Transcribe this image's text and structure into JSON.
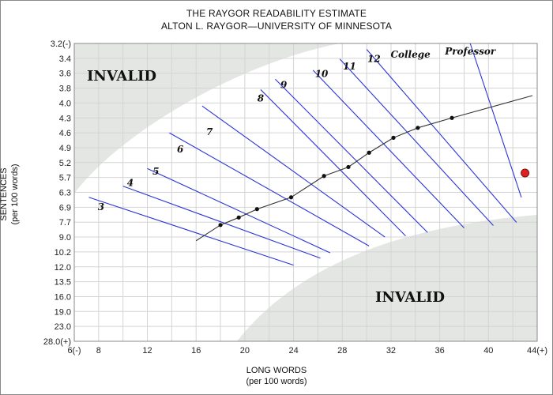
{
  "header": {
    "title": "THE RAYGOR READABILITY ESTIMATE",
    "subtitle": "ALTON L. RAYGOR—UNIVERSITY OF MINNESOTA"
  },
  "chart_data": {
    "type": "scatter",
    "title": "THE RAYGOR READABILITY ESTIMATE",
    "subtitle": "ALTON L. RAYGOR—UNIVERSITY OF MINNESOTA",
    "xlabel": "LONG WORDS",
    "xlabel_sub": "(per 100 words)",
    "ylabel": "SENTENCES",
    "ylabel_sub": "(per 100 words)",
    "x_ticks": [
      "6(-)",
      "8",
      "12",
      "16",
      "20",
      "24",
      "28",
      "32",
      "36",
      "40",
      "44(+)"
    ],
    "y_ticks": [
      "3.2(-)",
      "3.4",
      "3.6",
      "3.8",
      "4.0",
      "4.3",
      "4.6",
      "4.9",
      "5.2",
      "5.7",
      "6.3",
      "6.9",
      "7.7",
      "9.0",
      "10.2",
      "12.0",
      "13.5",
      "16.0",
      "19.0",
      "23.0",
      "28.0(+)"
    ],
    "invalid_label": "INVALID",
    "grade_labels": [
      "3",
      "4",
      "5",
      "6",
      "7",
      "8",
      "9",
      "10",
      "11",
      "12",
      "College",
      "Professor"
    ],
    "curve_points": [
      {
        "x": 18,
        "y": 7.95
      },
      {
        "x": 19.5,
        "y": 7.45
      },
      {
        "x": 21,
        "y": 7.0
      },
      {
        "x": 23.8,
        "y": 6.5
      },
      {
        "x": 26.5,
        "y": 5.65
      },
      {
        "x": 28.5,
        "y": 5.35
      },
      {
        "x": 30.2,
        "y": 5.0
      },
      {
        "x": 32.2,
        "y": 4.7
      },
      {
        "x": 34.2,
        "y": 4.5
      },
      {
        "x": 37,
        "y": 4.3
      }
    ],
    "plotted_point": {
      "x": 43,
      "y": 5.55,
      "color": "#e02020"
    },
    "colors": {
      "grade_lines": "#2a34d8",
      "invalid_region": "#e3e6e3",
      "grid": "#d4d4d4",
      "curve": "#333333"
    }
  }
}
